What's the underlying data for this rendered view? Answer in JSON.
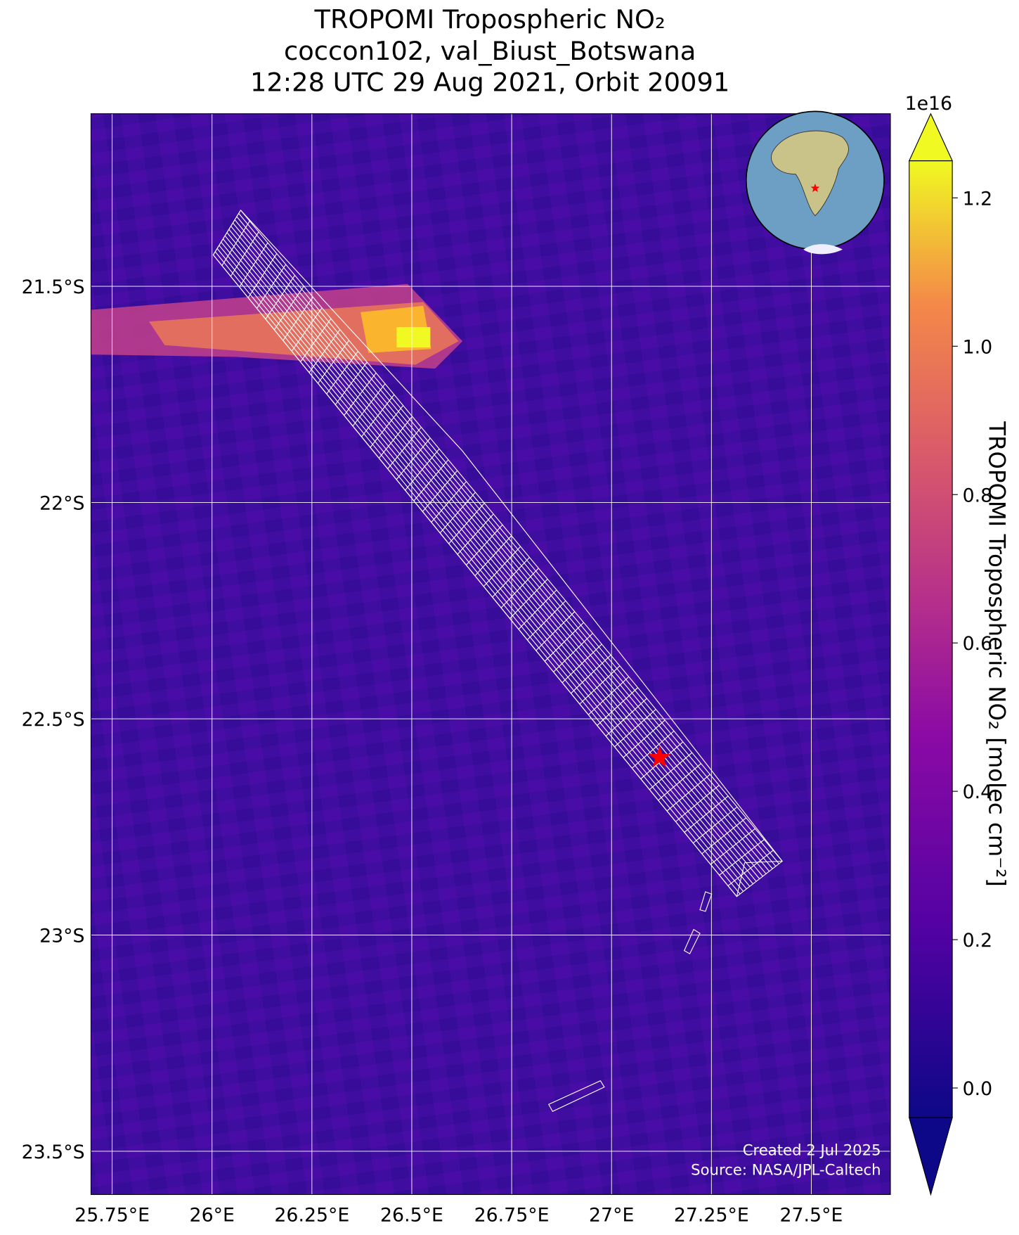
{
  "chart_data": {
    "type": "map",
    "title": [
      "TROPOMI Tropospheric NO₂",
      "coccon102, val_Biust_Botswana",
      "12:28 UTC 29 Aug 2021, Orbit 20091"
    ],
    "xlim": [
      25.697,
      27.698
    ],
    "ylim": [
      -23.6,
      -21.101
    ],
    "xticks": [
      {
        "value": 25.75,
        "label": "25.75°E"
      },
      {
        "value": 26,
        "label": "26°E"
      },
      {
        "value": 26.25,
        "label": "26.25°E"
      },
      {
        "value": 26.5,
        "label": "26.5°E"
      },
      {
        "value": 26.75,
        "label": "26.75°E"
      },
      {
        "value": 27,
        "label": "27°E"
      },
      {
        "value": 27.25,
        "label": "27.25°E"
      },
      {
        "value": 27.5,
        "label": "27.5°E"
      }
    ],
    "yticks": [
      {
        "value": -21.5,
        "label": "21.5°S"
      },
      {
        "value": -22,
        "label": "22°S"
      },
      {
        "value": -22.5,
        "label": "22.5°S"
      },
      {
        "value": -23,
        "label": "23°S"
      },
      {
        "value": -23.5,
        "label": "23.5°S"
      }
    ],
    "grid": true,
    "site_marker": {
      "lon": 27.12,
      "lat": -22.59,
      "color": "#ff0000"
    },
    "colorbar": {
      "label": "TROPOMI Tropospheric NO₂ [molec cm⁻²]",
      "offset_text": "1e16",
      "clim": [
        -0.04,
        1.25
      ],
      "ticks": [
        {
          "value": 0,
          "label": "0.0"
        },
        0.2,
        0.4,
        0.6,
        0.8,
        {
          "value": 1,
          "label": "1.0"
        },
        1.2
      ]
    },
    "footer": [
      "Created 2 Jul 2025",
      "Source: NASA/JPL-Caltech"
    ]
  }
}
